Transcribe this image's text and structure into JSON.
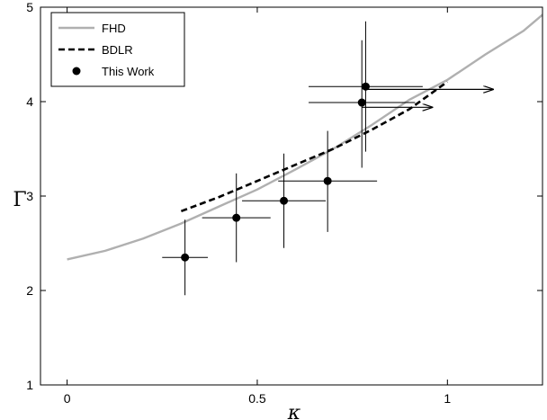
{
  "chart_data": {
    "type": "line",
    "title": "",
    "xlabel": "κ",
    "ylabel": "Γ",
    "xlim": [
      -0.07,
      1.25
    ],
    "ylim": [
      1,
      5
    ],
    "xticks": [
      0,
      0.5,
      1
    ],
    "xtick_labels": [
      "0",
      "0.5",
      "1"
    ],
    "yticks": [
      1,
      2,
      3,
      4,
      5
    ],
    "ytick_labels": [
      "1",
      "2",
      "3",
      "4",
      "5"
    ],
    "grid": false,
    "legend_position": "top-left",
    "series": [
      {
        "name": "FHD",
        "kind": "line",
        "style": "solid",
        "color": "#b0b0b0",
        "x": [
          0,
          0.1,
          0.2,
          0.3,
          0.4,
          0.5,
          0.6,
          0.7,
          0.8,
          0.9,
          1.0,
          1.1,
          1.2,
          1.25
        ],
        "y": [
          2.33,
          2.42,
          2.55,
          2.71,
          2.89,
          3.07,
          3.28,
          3.5,
          3.75,
          4.02,
          4.23,
          4.5,
          4.75,
          4.92
        ]
      },
      {
        "name": "BDLR",
        "kind": "line",
        "style": "dashed",
        "color": "#000000",
        "x": [
          0.3,
          0.4,
          0.5,
          0.6,
          0.7,
          0.8,
          0.9,
          1.0
        ],
        "y": [
          2.84,
          2.99,
          3.16,
          3.33,
          3.5,
          3.7,
          3.92,
          4.21
        ]
      },
      {
        "name": "This Work",
        "kind": "scatter",
        "color": "#000000",
        "points": [
          {
            "x": 0.31,
            "y": 2.35,
            "xerr": 0.06,
            "yerr_low": 0.4,
            "yerr_high": 0.4
          },
          {
            "x": 0.445,
            "y": 2.77,
            "xerr": 0.09,
            "yerr_low": 0.47,
            "yerr_high": 0.47
          },
          {
            "x": 0.57,
            "y": 2.95,
            "xerr": 0.11,
            "yerr_low": 0.5,
            "yerr_high": 0.5
          },
          {
            "x": 0.685,
            "y": 3.16,
            "xerr": 0.13,
            "yerr_low": 0.54,
            "yerr_high": 0.53
          },
          {
            "x": 0.775,
            "y": 3.99,
            "xerr": 0.14,
            "yerr_low": 0.69,
            "yerr_high": 0.66
          },
          {
            "x": 0.785,
            "y": 4.16,
            "xerr": 0.15,
            "yerr_low": 0.69,
            "yerr_high": 0.69
          }
        ]
      }
    ],
    "arrows": [
      {
        "x_from": 0.775,
        "x_to": 0.96,
        "y": 3.94
      },
      {
        "x_from": 0.785,
        "x_to": 1.12,
        "y": 4.13
      }
    ]
  }
}
